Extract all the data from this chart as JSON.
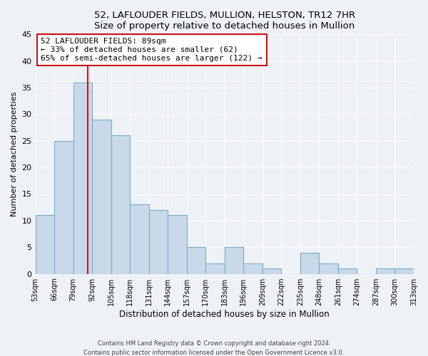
{
  "title": "52, LAFLOUDER FIELDS, MULLION, HELSTON, TR12 7HR",
  "subtitle": "Size of property relative to detached houses in Mullion",
  "xlabel": "Distribution of detached houses by size in Mullion",
  "ylabel": "Number of detached properties",
  "bin_edges": [
    53,
    66,
    79,
    92,
    105,
    118,
    131,
    144,
    157,
    170,
    183,
    196,
    209,
    222,
    235,
    248,
    261,
    274,
    287,
    300,
    313
  ],
  "bin_labels": [
    "53sqm",
    "66sqm",
    "79sqm",
    "92sqm",
    "105sqm",
    "118sqm",
    "131sqm",
    "144sqm",
    "157sqm",
    "170sqm",
    "183sqm",
    "196sqm",
    "209sqm",
    "222sqm",
    "235sqm",
    "248sqm",
    "261sqm",
    "274sqm",
    "287sqm",
    "300sqm",
    "313sqm"
  ],
  "counts": [
    11,
    25,
    36,
    29,
    26,
    13,
    12,
    11,
    5,
    2,
    5,
    2,
    1,
    0,
    4,
    2,
    1,
    0,
    1,
    1
  ],
  "bar_color": "#c9d9ea",
  "bar_edge_color": "#7aaac8",
  "red_line_x": 89,
  "annotation_text_line1": "52 LAFLOUDER FIELDS: 89sqm",
  "annotation_text_line2": "← 33% of detached houses are smaller (62)",
  "annotation_text_line3": "65% of semi-detached houses are larger (122) →",
  "ylim": [
    0,
    45
  ],
  "yticks": [
    0,
    5,
    10,
    15,
    20,
    25,
    30,
    35,
    40,
    45
  ],
  "footer_line1": "Contains HM Land Registry data © Crown copyright and database right 2024.",
  "footer_line2": "Contains public sector information licensed under the Open Government Licence v3.0.",
  "background_color": "#eef2f7",
  "grid_color": "#ffffff"
}
